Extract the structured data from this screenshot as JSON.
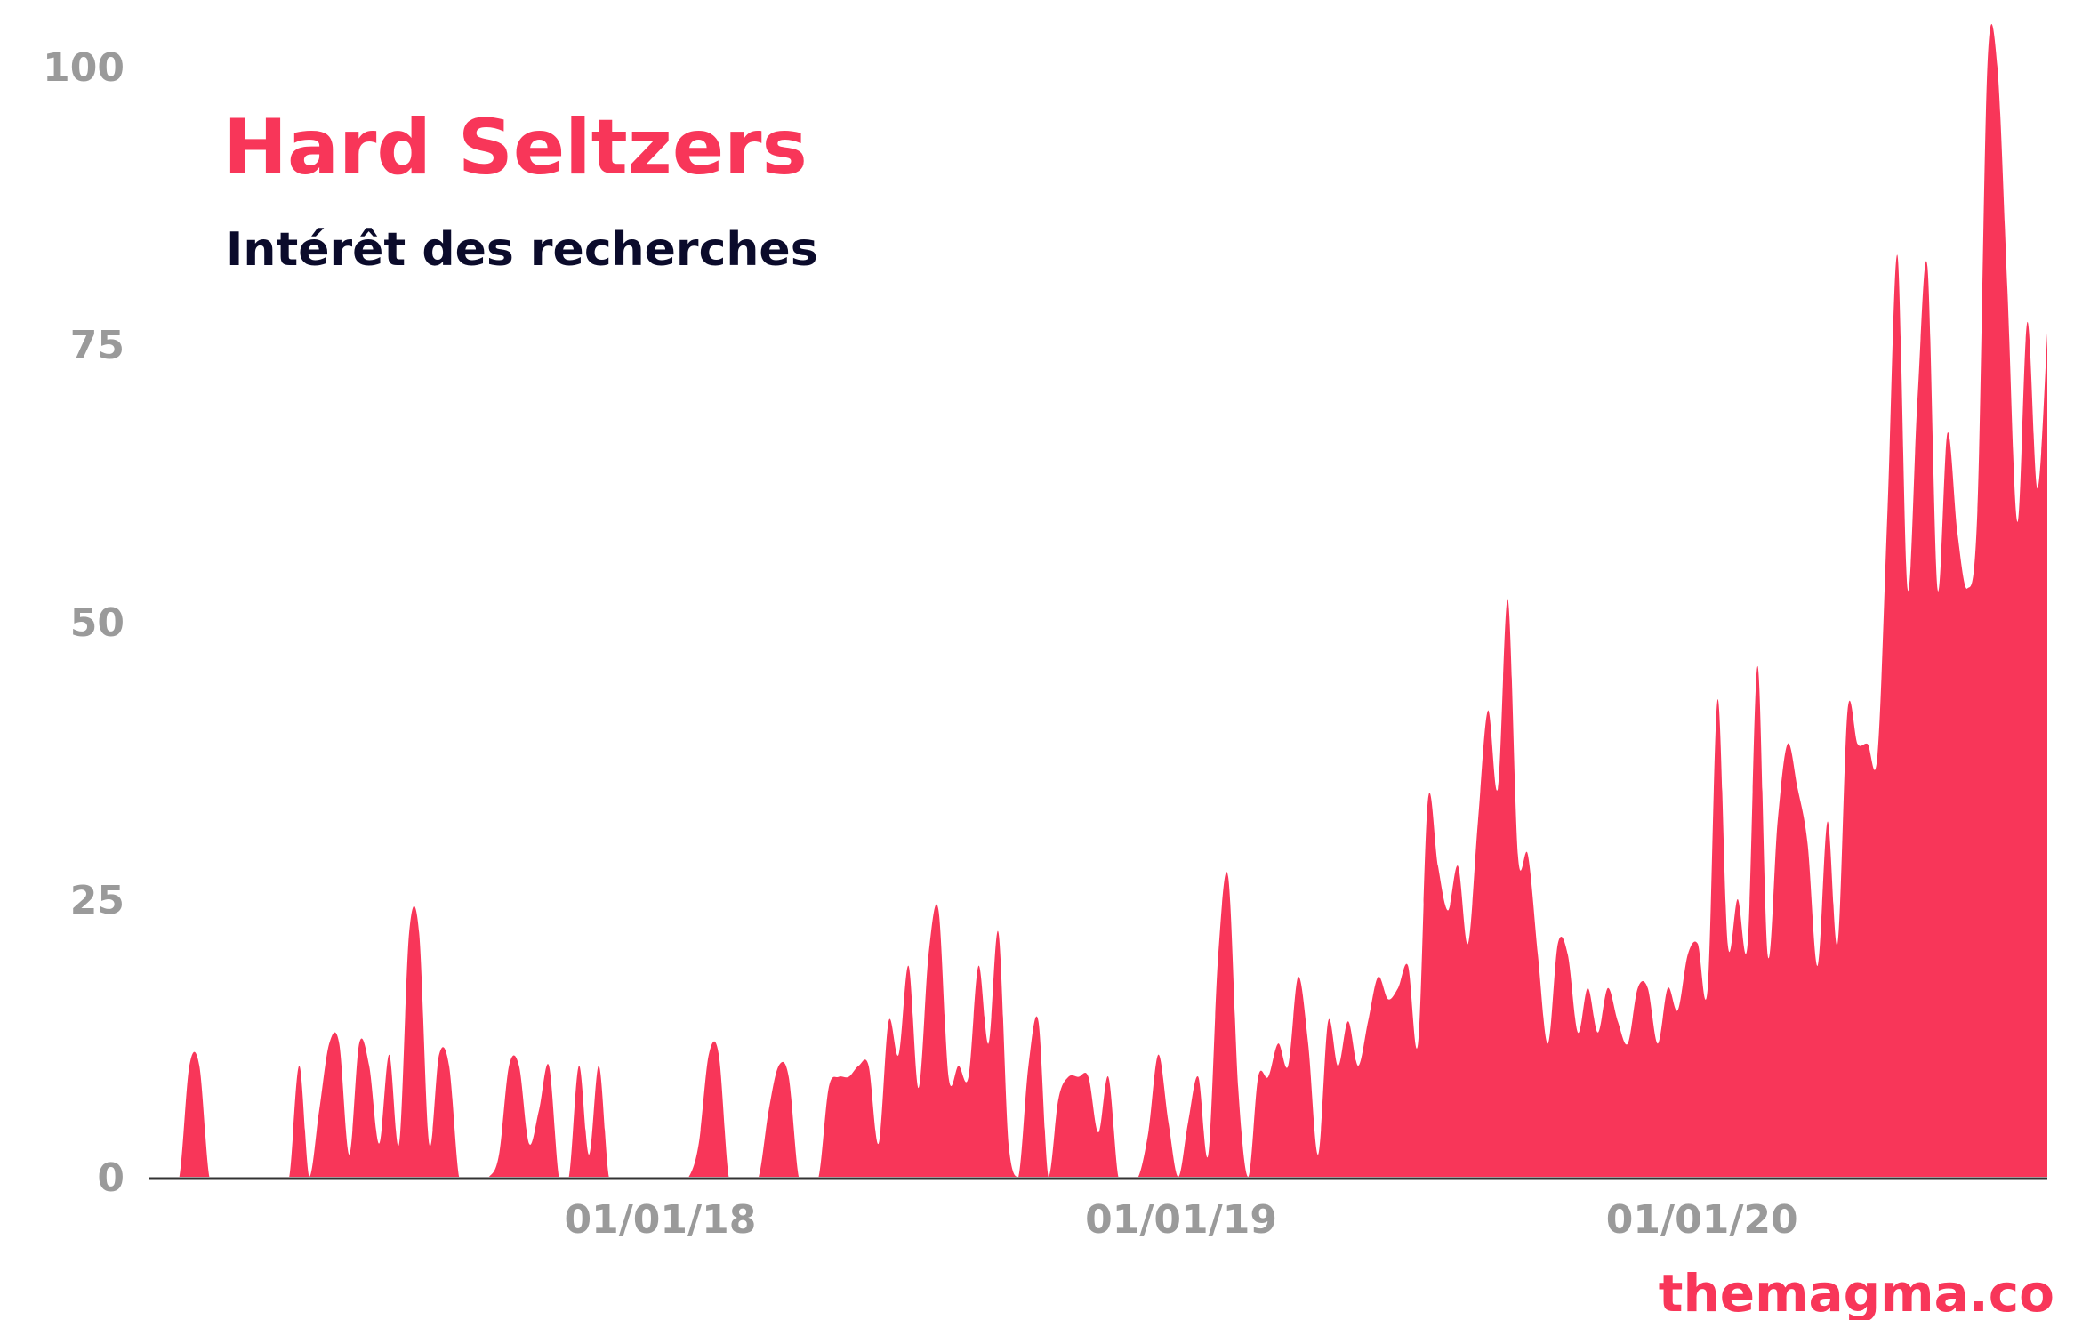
{
  "chart_data": {
    "type": "area",
    "title": "Hard Seltzers",
    "subtitle": "Intérêt des recherches",
    "xlabel": "",
    "ylabel": "",
    "ylim": [
      0,
      100
    ],
    "yticks": [
      "0",
      "25",
      "50",
      "75",
      "100"
    ],
    "xticks": [
      {
        "date": "2018-01-01",
        "label": "01/01/18"
      },
      {
        "date": "2019-01-01",
        "label": "01/01/19"
      },
      {
        "date": "2020-01-01",
        "label": "01/01/20"
      }
    ],
    "grid": false,
    "legend": "none",
    "x_start": "2017-01-08",
    "x_interval": "week",
    "values": [
      0,
      0,
      0,
      0,
      10,
      10,
      0,
      0,
      0,
      0,
      0,
      0,
      0,
      0,
      0,
      10,
      0,
      6,
      12,
      12,
      2,
      12,
      10,
      3,
      11,
      3,
      22,
      22,
      3,
      11,
      10,
      0,
      0,
      0,
      0,
      2,
      10,
      10,
      3,
      6,
      10,
      0,
      0,
      10,
      2,
      10,
      0,
      0,
      0,
      0,
      0,
      0,
      0,
      0,
      0,
      3,
      11,
      11,
      0,
      0,
      0,
      0,
      6,
      10,
      9,
      0,
      0,
      0,
      8,
      9,
      9,
      10,
      10,
      3,
      14,
      11,
      19,
      8,
      20,
      24,
      9,
      10,
      9,
      19,
      12,
      22,
      3,
      0,
      10,
      14,
      0,
      7,
      9,
      9,
      9,
      4,
      9,
      0,
      0,
      0,
      4,
      11,
      5,
      0,
      5,
      9,
      2,
      20,
      27,
      8,
      0,
      9,
      9,
      12,
      10,
      18,
      12,
      2,
      14,
      10,
      14,
      10,
      14,
      18,
      16,
      17,
      19,
      12,
      34,
      28,
      24,
      28,
      21,
      32,
      42,
      35,
      52,
      29,
      29,
      20,
      12,
      21,
      20,
      13,
      17,
      13,
      17,
      14,
      12,
      17,
      17,
      12,
      17,
      15,
      20,
      21,
      17,
      43,
      21,
      25,
      21,
      46,
      20,
      32,
      39,
      35,
      30,
      19,
      32,
      21,
      42,
      39,
      39,
      38,
      60,
      83,
      53,
      70,
      82,
      53,
      67,
      58,
      53,
      60,
      100,
      100,
      80,
      59,
      77,
      62,
      76
    ],
    "colors": {
      "area": "#f83659",
      "axis": "#333333",
      "ticks": "#9a9a9a",
      "title": "#f83659",
      "subtitle": "#0b0b2b"
    }
  },
  "watermark": "themagma.co"
}
